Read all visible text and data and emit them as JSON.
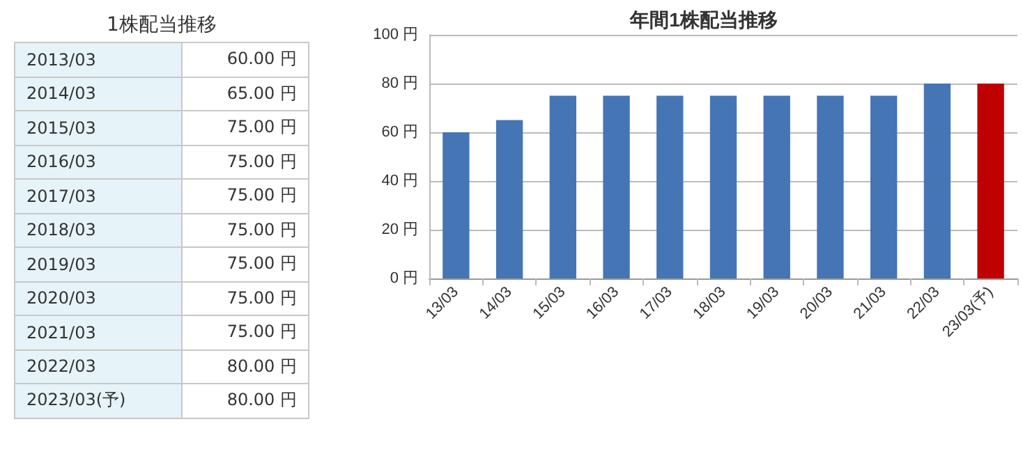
{
  "chart_data": [
    {
      "type": "other",
      "title": "1株配当推移",
      "categories": [
        "2013/03",
        "2014/03",
        "2015/03",
        "2016/03",
        "2017/03",
        "2018/03",
        "2019/03",
        "2020/03",
        "2021/03",
        "2022/03",
        "2023/03(予)"
      ],
      "value_labels": [
        "60.00 円",
        "65.00 円",
        "75.00 円",
        "75.00 円",
        "75.00 円",
        "75.00 円",
        "75.00 円",
        "75.00 円",
        "75.00 円",
        "80.00 円",
        "80.00 円"
      ]
    },
    {
      "type": "bar",
      "title": "年間1株配当推移",
      "categories": [
        "13/03",
        "14/03",
        "15/03",
        "16/03",
        "17/03",
        "18/03",
        "19/03",
        "20/03",
        "21/03",
        "22/03",
        "23/03(予)"
      ],
      "values": [
        60,
        65,
        75,
        75,
        75,
        75,
        75,
        75,
        75,
        80,
        80
      ],
      "colors": [
        "#4575b5",
        "#4575b5",
        "#4575b5",
        "#4575b5",
        "#4575b5",
        "#4575b5",
        "#4575b5",
        "#4575b5",
        "#4575b5",
        "#4575b5",
        "#bf0000"
      ],
      "ylim": [
        0,
        100
      ],
      "yticks": [
        {
          "value": 0,
          "label": "0 円"
        },
        {
          "value": 20,
          "label": "20 円"
        },
        {
          "value": 40,
          "label": "40 円"
        },
        {
          "value": 60,
          "label": "60 円"
        },
        {
          "value": 80,
          "label": "80 円"
        },
        {
          "value": 100,
          "label": "100 円"
        }
      ],
      "grid": "y"
    }
  ]
}
